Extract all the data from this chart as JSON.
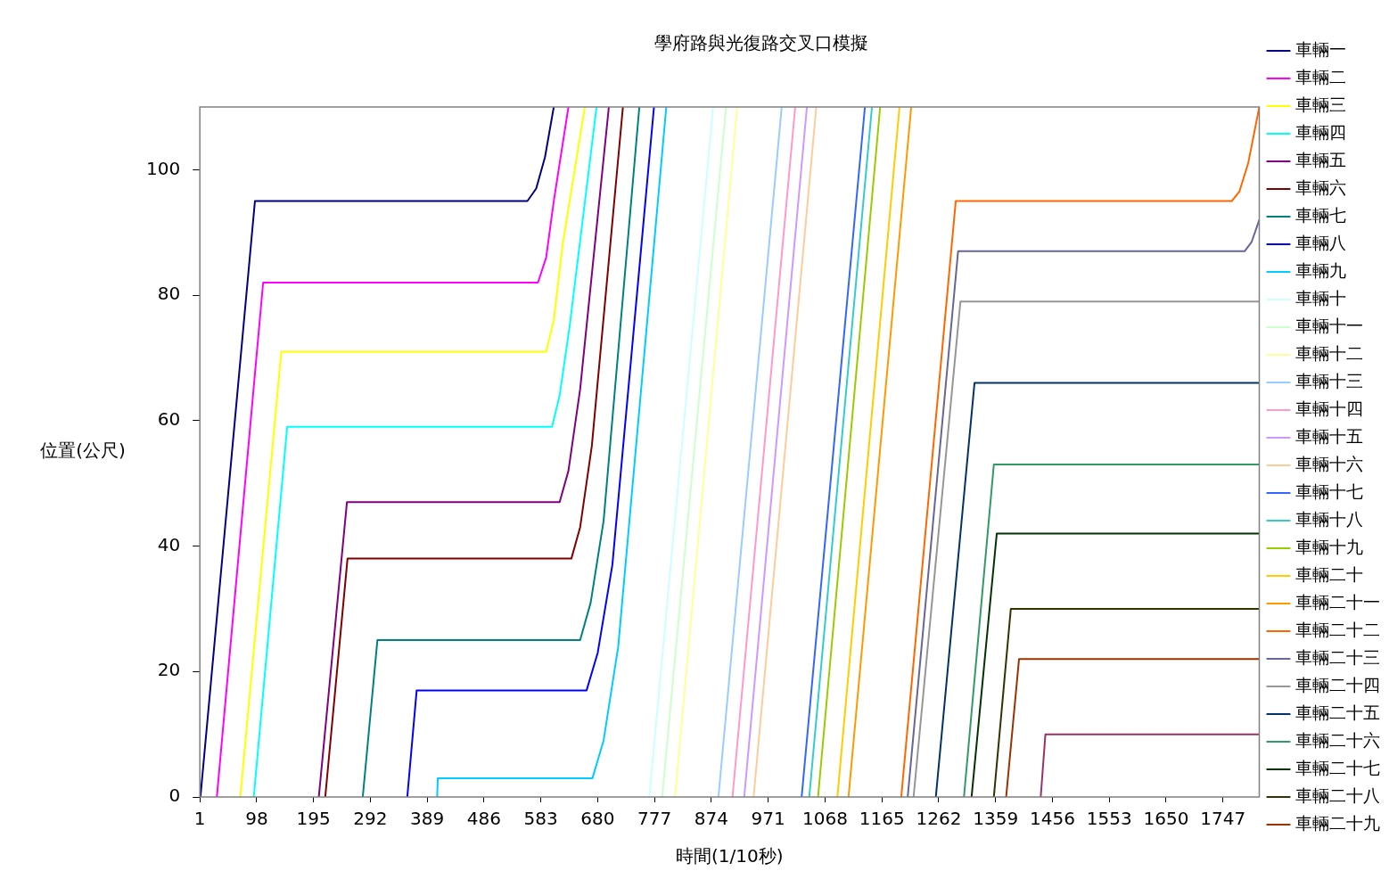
{
  "chart_data": {
    "type": "line",
    "title": "學府路與光復路交叉口模擬",
    "xlabel": "時間(1/10秒)",
    "ylabel": "位置(公尺)",
    "xlim": [
      1,
      1809
    ],
    "xticks": [
      1,
      98,
      195,
      292,
      389,
      486,
      583,
      680,
      777,
      874,
      971,
      1068,
      1165,
      1262,
      1359,
      1456,
      1553,
      1650,
      1747
    ],
    "ylim": [
      0,
      110
    ],
    "yticks": [
      0,
      20,
      40,
      60,
      80,
      100
    ],
    "grid": false,
    "legend": "right",
    "marker": "none",
    "line_style": "solid",
    "series": [
      {
        "name": "車輛一",
        "color": "#000080",
        "x": [
          2,
          95,
          560,
          575,
          590,
          605
        ],
        "values": [
          0,
          95,
          95,
          97,
          102,
          110
        ]
      },
      {
        "name": "車輛二",
        "color": "#ff00ff",
        "x": [
          30,
          109,
          578,
          592,
          605,
          630
        ],
        "values": [
          0,
          82,
          82,
          86,
          95,
          110
        ]
      },
      {
        "name": "車輛三",
        "color": "#ffff00",
        "x": [
          70,
          140,
          592,
          605,
          620,
          658
        ],
        "values": [
          0,
          71,
          71,
          76,
          88,
          110
        ]
      },
      {
        "name": "車輛四",
        "color": "#00ffff",
        "x": [
          93,
          150,
          602,
          615,
          632,
          678
        ],
        "values": [
          0,
          59,
          59,
          64,
          75,
          110
        ]
      },
      {
        "name": "車輛五",
        "color": "#800080",
        "x": [
          204,
          252,
          615,
          630,
          650,
          699
        ],
        "values": [
          0,
          47,
          47,
          52,
          65,
          110
        ]
      },
      {
        "name": "車輛六",
        "color": "#800000",
        "x": [
          215,
          253,
          635,
          650,
          670,
          723
        ],
        "values": [
          0,
          38,
          38,
          43,
          56,
          110
        ]
      },
      {
        "name": "車輛七",
        "color": "#008080",
        "x": [
          279,
          304,
          650,
          668,
          690,
          751
        ],
        "values": [
          0,
          25,
          25,
          31,
          44,
          110
        ]
      },
      {
        "name": "車輛八",
        "color": "#0000ff",
        "x": [
          355,
          371,
          661,
          680,
          705,
          776
        ],
        "values": [
          0,
          17,
          17,
          23,
          37,
          110
        ]
      },
      {
        "name": "車輛九",
        "color": "#00ccff",
        "x": [
          406,
          407,
          671,
          690,
          715,
          797
        ],
        "values": [
          0,
          3,
          3,
          9,
          24,
          110
        ]
      },
      {
        "name": "車輛十",
        "color": "#ccffff",
        "x": [
          768,
          877
        ],
        "values": [
          0,
          110
        ]
      },
      {
        "name": "車輛十一",
        "color": "#ccffcc",
        "x": [
          790,
          899
        ],
        "values": [
          0,
          110
        ]
      },
      {
        "name": "車輛十二",
        "color": "#ffff99",
        "x": [
          812,
          918
        ],
        "values": [
          0,
          110
        ]
      },
      {
        "name": "車輛十三",
        "color": "#99ccff",
        "x": [
          886,
          994
        ],
        "values": [
          0,
          110
        ]
      },
      {
        "name": "車輛十四",
        "color": "#ff99cc",
        "x": [
          910,
          1017
        ],
        "values": [
          0,
          110
        ]
      },
      {
        "name": "車輛十五",
        "color": "#cc99ff",
        "x": [
          930,
          1037
        ],
        "values": [
          0,
          110
        ]
      },
      {
        "name": "車輛十六",
        "color": "#ffcc99",
        "x": [
          946,
          1053
        ],
        "values": [
          0,
          110
        ]
      },
      {
        "name": "車輛十七",
        "color": "#3366ff",
        "x": [
          1028,
          1136
        ],
        "values": [
          0,
          110
        ]
      },
      {
        "name": "車輛十八",
        "color": "#33cccc",
        "x": [
          1041,
          1148
        ],
        "values": [
          0,
          110
        ]
      },
      {
        "name": "車輛十九",
        "color": "#99cc00",
        "x": [
          1056,
          1162
        ],
        "values": [
          0,
          110
        ]
      },
      {
        "name": "車輛二十",
        "color": "#ffcc00",
        "x": [
          1089,
          1195
        ],
        "values": [
          0,
          110
        ]
      },
      {
        "name": "車輛二十一",
        "color": "#ff9900",
        "x": [
          1108,
          1215
        ],
        "values": [
          0,
          110
        ]
      },
      {
        "name": "車輛二十二",
        "color": "#ff6600",
        "x": [
          1198,
          1291,
          1762,
          1775,
          1790,
          1809
        ],
        "values": [
          0,
          95,
          95,
          96.5,
          101,
          110
        ]
      },
      {
        "name": "車輛二十三",
        "color": "#666699",
        "x": [
          1209,
          1295,
          1784,
          1796,
          1809
        ],
        "values": [
          0,
          87,
          87,
          88.5,
          92
        ]
      },
      {
        "name": "車輛二十四",
        "color": "#969696",
        "x": [
          1219,
          1299,
          1809
        ],
        "values": [
          0,
          79,
          79
        ]
      },
      {
        "name": "車輛二十五",
        "color": "#003366",
        "x": [
          1257,
          1323,
          1809
        ],
        "values": [
          0,
          66,
          66
        ]
      },
      {
        "name": "車輛二十六",
        "color": "#339966",
        "x": [
          1305,
          1356,
          1809
        ],
        "values": [
          0,
          53,
          53
        ]
      },
      {
        "name": "車輛二十七",
        "color": "#003300",
        "x": [
          1318,
          1361,
          1809
        ],
        "values": [
          0,
          42,
          42
        ]
      },
      {
        "name": "車輛二十八",
        "color": "#333300",
        "x": [
          1356,
          1385,
          1809
        ],
        "values": [
          0,
          30,
          30
        ]
      },
      {
        "name": "車輛二十九",
        "color": "#993300",
        "x": [
          1377,
          1399,
          1809
        ],
        "values": [
          0,
          22,
          22
        ]
      },
      {
        "color": "#993366",
        "x": [
          1436,
          1444,
          1809
        ],
        "values": [
          0,
          10,
          10
        ]
      }
    ]
  }
}
